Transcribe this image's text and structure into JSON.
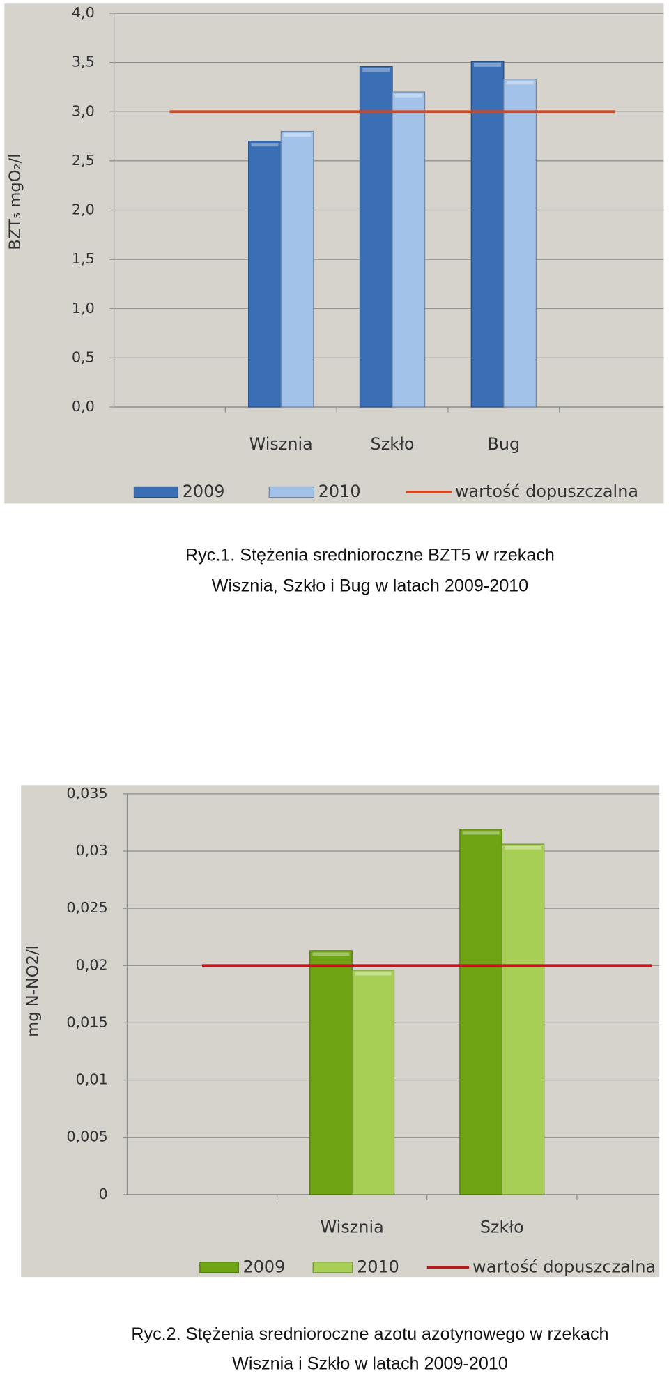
{
  "chart_data": [
    {
      "type": "bar",
      "y_label": "BZT₅ mgO₂/l",
      "categories": [
        null,
        "Wisznia",
        "Szkło",
        "Bug",
        null
      ],
      "series": [
        {
          "name": "2009",
          "color": "#3a6fb5",
          "values": [
            null,
            2.7,
            3.46,
            3.51,
            null
          ]
        },
        {
          "name": "2010",
          "color": "#a3c2ea",
          "values": [
            null,
            2.8,
            3.2,
            3.33,
            null
          ]
        },
        {
          "name": "wartość dopuszczalna",
          "type": "line",
          "color": "#d9461a",
          "values": [
            3,
            3,
            3,
            3,
            3
          ]
        }
      ],
      "ylim": [
        0,
        4
      ],
      "yticks": [
        {
          "value": 0,
          "label": "0,0"
        },
        {
          "value": 0.5,
          "label": "0,5"
        },
        {
          "value": 1,
          "label": "1,0"
        },
        {
          "value": 1.5,
          "label": "1,5"
        },
        {
          "value": 2,
          "label": "2,0"
        },
        {
          "value": 2.5,
          "label": "2,5"
        },
        {
          "value": 3,
          "label": "3,0"
        },
        {
          "value": 3.5,
          "label": "3,5"
        },
        {
          "value": 4,
          "label": "4,0"
        }
      ],
      "grid": true,
      "legend": "bottom",
      "caption": [
        "Ryc.1. Stężenia srednioroczne BZT5 w rzekach",
        "Wisznia, Szkło i Bug w latach 2009-2010"
      ]
    },
    {
      "type": "bar",
      "y_label": "mg N-NO2/l",
      "categories": [
        null,
        "Wisznia",
        "Szkło",
        null
      ],
      "series": [
        {
          "name": "2009",
          "color": "#6fa514",
          "values": [
            null,
            0.0213,
            0.0319,
            null
          ]
        },
        {
          "name": "2010",
          "color": "#a8cf55",
          "values": [
            null,
            0.0196,
            0.0306,
            null
          ]
        },
        {
          "name": "wartość dopuszczalna",
          "type": "line",
          "color": "#c0171d",
          "values": [
            0.02,
            0.02,
            0.02,
            0.02
          ]
        }
      ],
      "ylim": [
        0,
        0.035
      ],
      "yticks": [
        0,
        {
          "value": 0.005,
          "label": "0,005"
        },
        {
          "value": 0.01,
          "label": "0,01"
        },
        {
          "value": 0.015,
          "label": "0,015"
        },
        {
          "value": 0.02,
          "label": "0,02"
        },
        {
          "value": 0.025,
          "label": "0,025"
        },
        {
          "value": 0.03,
          "label": "0,03"
        },
        {
          "value": 0.035,
          "label": "0,035"
        }
      ],
      "grid": true,
      "legend": "bottom",
      "caption": [
        "Ryc.2. Stężenia srednioroczne azotu azotynowego w rzekach",
        "Wisznia i Szkło w latach 2009-2010"
      ]
    }
  ]
}
